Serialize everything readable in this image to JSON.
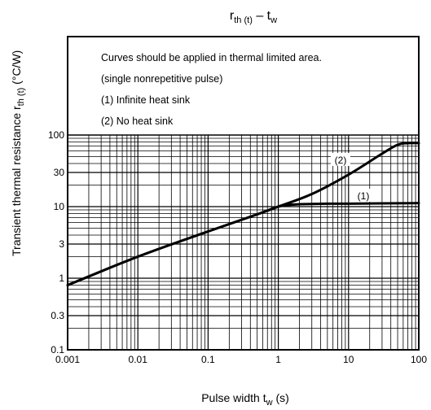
{
  "chart_data": {
    "type": "line",
    "title": {
      "main": "r",
      "main_sub": "th (t)",
      "sep": " – ",
      "var": "t",
      "var_sub": "w"
    },
    "xlabel": {
      "text": "Pulse width",
      "var": "t",
      "var_sub": "w",
      "unit": "(s)"
    },
    "ylabel": {
      "text": "Transient thermal resistance",
      "var": "r",
      "var_sub": "th (t)",
      "unit": "(°C/W)"
    },
    "x_scale": "log",
    "y_scale": "log",
    "xlim": [
      0.001,
      100
    ],
    "ylim": [
      0.1,
      100
    ],
    "x_ticks": [
      {
        "value": 0.001,
        "label": "0.001"
      },
      {
        "value": 0.01,
        "label": "0.01"
      },
      {
        "value": 0.1,
        "label": "0.1"
      },
      {
        "value": 1,
        "label": "1"
      },
      {
        "value": 10,
        "label": "10"
      },
      {
        "value": 100,
        "label": "100"
      }
    ],
    "y_ticks": [
      {
        "value": 0.1,
        "label": "0.1"
      },
      {
        "value": 0.3,
        "label": "0.3"
      },
      {
        "value": 1,
        "label": "1"
      },
      {
        "value": 3,
        "label": "3"
      },
      {
        "value": 10,
        "label": "10"
      },
      {
        "value": 30,
        "label": "30"
      },
      {
        "value": 100,
        "label": "100"
      }
    ],
    "grid": true,
    "annotations": [
      "Curves should be applied in thermal limited area.",
      "(single nonrepetitive pulse)",
      "(1) Infinite heat sink",
      "(2) No heat sink"
    ],
    "series": [
      {
        "name": "(1)",
        "x": [
          0.001,
          0.01,
          0.1,
          0.5,
          1,
          1.5,
          2,
          5,
          10,
          100
        ],
        "y": [
          0.8,
          2.0,
          4.5,
          7.8,
          10,
          10.6,
          10.8,
          11.0,
          11.0,
          11.2
        ]
      },
      {
        "name": "(2)",
        "x": [
          0.001,
          0.01,
          0.1,
          0.5,
          1,
          3,
          10,
          30,
          50,
          70,
          100
        ],
        "y": [
          0.8,
          2.0,
          4.5,
          7.8,
          10,
          15,
          28,
          55,
          73,
          77,
          77
        ]
      }
    ],
    "colors": {
      "curve": "#000000",
      "grid": "#000000"
    }
  }
}
